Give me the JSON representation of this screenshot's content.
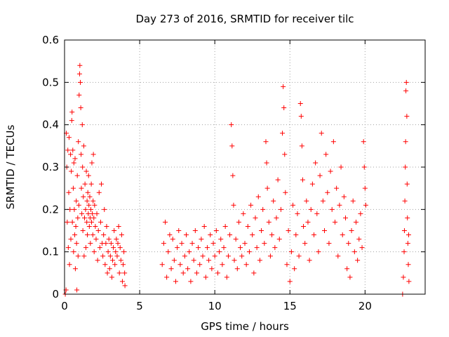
{
  "chart_data": {
    "type": "scatter",
    "title": "Day 273 of 2016, SRMTID for receiver tilc",
    "xlabel": "GPS time / hours",
    "ylabel": "SRMTID / TECUs",
    "xlim": [
      0,
      24
    ],
    "ylim": [
      0,
      0.6
    ],
    "xticks": [
      0,
      5,
      10,
      15,
      20
    ],
    "yticks": [
      0,
      0.1,
      0.2,
      0.3,
      0.4,
      0.5,
      0.6
    ],
    "grid": true,
    "marker": "+",
    "color": "#ff0000",
    "series": [
      {
        "name": "SRMTID",
        "points": [
          [
            0.05,
            0.0
          ],
          [
            0.1,
            0.01
          ],
          [
            0.12,
            0.38
          ],
          [
            0.15,
            0.3
          ],
          [
            0.18,
            0.17
          ],
          [
            0.22,
            0.34
          ],
          [
            0.25,
            0.11
          ],
          [
            0.28,
            0.24
          ],
          [
            0.3,
            0.37
          ],
          [
            0.33,
            0.07
          ],
          [
            0.36,
            0.2
          ],
          [
            0.4,
            0.33
          ],
          [
            0.42,
            0.13
          ],
          [
            0.45,
            0.29
          ],
          [
            0.48,
            0.41
          ],
          [
            0.5,
            0.43
          ],
          [
            0.52,
            0.17
          ],
          [
            0.55,
            0.34
          ],
          [
            0.58,
            0.25
          ],
          [
            0.6,
            0.1
          ],
          [
            0.62,
            0.31
          ],
          [
            0.65,
            0.2
          ],
          [
            0.68,
            0.14
          ],
          [
            0.7,
            0.32
          ],
          [
            0.72,
            0.06
          ],
          [
            0.75,
            0.16
          ],
          [
            0.78,
            0.22
          ],
          [
            0.8,
            0.12
          ],
          [
            0.82,
            0.01
          ],
          [
            0.85,
            0.28
          ],
          [
            0.88,
            0.18
          ],
          [
            0.9,
            0.09
          ],
          [
            0.92,
            0.36
          ],
          [
            0.95,
            0.21
          ],
          [
            0.97,
            0.47
          ],
          [
            1.0,
            0.52
          ],
          [
            1.02,
            0.54
          ],
          [
            1.05,
            0.5
          ],
          [
            1.08,
            0.44
          ],
          [
            1.1,
            0.33
          ],
          [
            1.12,
            0.25
          ],
          [
            1.15,
            0.19
          ],
          [
            1.18,
            0.4
          ],
          [
            1.2,
            0.3
          ],
          [
            1.22,
            0.15
          ],
          [
            1.25,
            0.23
          ],
          [
            1.28,
            0.35
          ],
          [
            1.3,
            0.09
          ],
          [
            1.33,
            0.18
          ],
          [
            1.36,
            0.26
          ],
          [
            1.4,
            0.2
          ],
          [
            1.42,
            0.11
          ],
          [
            1.45,
            0.29
          ],
          [
            1.48,
            0.17
          ],
          [
            1.5,
            0.22
          ],
          [
            1.52,
            0.14
          ],
          [
            1.55,
            0.24
          ],
          [
            1.58,
            0.19
          ],
          [
            1.6,
            0.28
          ],
          [
            1.62,
            0.21
          ],
          [
            1.65,
            0.16
          ],
          [
            1.68,
            0.23
          ],
          [
            1.7,
            0.18
          ],
          [
            1.72,
            0.12
          ],
          [
            1.75,
            0.2
          ],
          [
            1.78,
            0.26
          ],
          [
            1.8,
            0.17
          ],
          [
            1.82,
            0.31
          ],
          [
            1.85,
            0.19
          ],
          [
            1.88,
            0.14
          ],
          [
            1.9,
            0.22
          ],
          [
            1.92,
            0.33
          ],
          [
            1.95,
            0.18
          ],
          [
            1.97,
            0.1
          ],
          [
            2.0,
            0.21
          ],
          [
            2.05,
            0.16
          ],
          [
            2.1,
            0.13
          ],
          [
            2.15,
            0.19
          ],
          [
            2.2,
            0.08
          ],
          [
            2.25,
            0.15
          ],
          [
            2.3,
            0.24
          ],
          [
            2.35,
            0.11
          ],
          [
            2.4,
            0.17
          ],
          [
            2.45,
            0.26
          ],
          [
            2.5,
            0.12
          ],
          [
            2.55,
            0.09
          ],
          [
            2.6,
            0.14
          ],
          [
            2.65,
            0.2
          ],
          [
            2.7,
            0.07
          ],
          [
            2.75,
            0.12
          ],
          [
            2.8,
            0.16
          ],
          [
            2.85,
            0.05
          ],
          [
            2.9,
            0.1
          ],
          [
            2.95,
            0.13
          ],
          [
            3.0,
            0.06
          ],
          [
            3.05,
            0.09
          ],
          [
            3.1,
            0.12
          ],
          [
            3.15,
            0.04
          ],
          [
            3.2,
            0.08
          ],
          [
            3.25,
            0.11
          ],
          [
            3.3,
            0.15
          ],
          [
            3.35,
            0.07
          ],
          [
            3.4,
            0.1
          ],
          [
            3.45,
            0.13
          ],
          [
            3.5,
            0.09
          ],
          [
            3.55,
            0.12
          ],
          [
            3.6,
            0.16
          ],
          [
            3.65,
            0.05
          ],
          [
            3.7,
            0.11
          ],
          [
            3.75,
            0.08
          ],
          [
            3.8,
            0.14
          ],
          [
            3.85,
            0.03
          ],
          [
            3.9,
            0.07
          ],
          [
            3.95,
            0.1
          ],
          [
            4.0,
            0.05
          ],
          [
            4.02,
            0.02
          ],
          [
            6.5,
            0.07
          ],
          [
            6.6,
            0.12
          ],
          [
            6.7,
            0.17
          ],
          [
            6.8,
            0.04
          ],
          [
            6.9,
            0.1
          ],
          [
            7.0,
            0.14
          ],
          [
            7.1,
            0.06
          ],
          [
            7.2,
            0.13
          ],
          [
            7.3,
            0.08
          ],
          [
            7.4,
            0.03
          ],
          [
            7.5,
            0.11
          ],
          [
            7.6,
            0.15
          ],
          [
            7.7,
            0.07
          ],
          [
            7.8,
            0.12
          ],
          [
            7.9,
            0.05
          ],
          [
            8.0,
            0.09
          ],
          [
            8.1,
            0.14
          ],
          [
            8.2,
            0.06
          ],
          [
            8.3,
            0.1
          ],
          [
            8.4,
            0.03
          ],
          [
            8.5,
            0.12
          ],
          [
            8.6,
            0.08
          ],
          [
            8.7,
            0.15
          ],
          [
            8.8,
            0.05
          ],
          [
            8.9,
            0.11
          ],
          [
            9.0,
            0.07
          ],
          [
            9.1,
            0.13
          ],
          [
            9.2,
            0.09
          ],
          [
            9.3,
            0.16
          ],
          [
            9.4,
            0.04
          ],
          [
            9.5,
            0.11
          ],
          [
            9.6,
            0.08
          ],
          [
            9.7,
            0.14
          ],
          [
            9.8,
            0.06
          ],
          [
            9.9,
            0.12
          ],
          [
            10.0,
            0.09
          ],
          [
            10.1,
            0.15
          ],
          [
            10.2,
            0.05
          ],
          [
            10.3,
            0.1
          ],
          [
            10.4,
            0.13
          ],
          [
            10.5,
            0.07
          ],
          [
            10.6,
            0.11
          ],
          [
            10.7,
            0.16
          ],
          [
            10.8,
            0.04
          ],
          [
            10.9,
            0.09
          ],
          [
            11.0,
            0.14
          ],
          [
            11.1,
            0.4
          ],
          [
            11.15,
            0.35
          ],
          [
            11.2,
            0.28
          ],
          [
            11.25,
            0.21
          ],
          [
            11.3,
            0.08
          ],
          [
            11.4,
            0.13
          ],
          [
            11.5,
            0.06
          ],
          [
            11.6,
            0.17
          ],
          [
            11.7,
            0.11
          ],
          [
            11.8,
            0.09
          ],
          [
            11.9,
            0.19
          ],
          [
            12.0,
            0.12
          ],
          [
            12.1,
            0.07
          ],
          [
            12.2,
            0.16
          ],
          [
            12.3,
            0.1
          ],
          [
            12.4,
            0.21
          ],
          [
            12.5,
            0.14
          ],
          [
            12.6,
            0.05
          ],
          [
            12.7,
            0.18
          ],
          [
            12.8,
            0.11
          ],
          [
            12.9,
            0.23
          ],
          [
            13.0,
            0.08
          ],
          [
            13.1,
            0.15
          ],
          [
            13.2,
            0.2
          ],
          [
            13.3,
            0.12
          ],
          [
            13.4,
            0.36
          ],
          [
            13.45,
            0.31
          ],
          [
            13.5,
            0.25
          ],
          [
            13.6,
            0.17
          ],
          [
            13.7,
            0.09
          ],
          [
            13.8,
            0.14
          ],
          [
            13.9,
            0.22
          ],
          [
            14.0,
            0.11
          ],
          [
            14.1,
            0.18
          ],
          [
            14.2,
            0.27
          ],
          [
            14.3,
            0.13
          ],
          [
            14.4,
            0.2
          ],
          [
            14.5,
            0.38
          ],
          [
            14.55,
            0.49
          ],
          [
            14.6,
            0.44
          ],
          [
            14.65,
            0.33
          ],
          [
            14.7,
            0.24
          ],
          [
            14.8,
            0.07
          ],
          [
            14.9,
            0.15
          ],
          [
            15.0,
            0.03
          ],
          [
            15.1,
            0.1
          ],
          [
            15.2,
            0.21
          ],
          [
            15.3,
            0.06
          ],
          [
            15.4,
            0.14
          ],
          [
            15.5,
            0.19
          ],
          [
            15.6,
            0.09
          ],
          [
            15.7,
            0.45
          ],
          [
            15.75,
            0.42
          ],
          [
            15.8,
            0.35
          ],
          [
            15.85,
            0.27
          ],
          [
            15.9,
            0.16
          ],
          [
            16.0,
            0.12
          ],
          [
            16.1,
            0.22
          ],
          [
            16.2,
            0.17
          ],
          [
            16.3,
            0.08
          ],
          [
            16.4,
            0.2
          ],
          [
            16.5,
            0.26
          ],
          [
            16.6,
            0.14
          ],
          [
            16.7,
            0.31
          ],
          [
            16.8,
            0.19
          ],
          [
            16.9,
            0.1
          ],
          [
            17.0,
            0.28
          ],
          [
            17.1,
            0.38
          ],
          [
            17.2,
            0.22
          ],
          [
            17.3,
            0.15
          ],
          [
            17.4,
            0.33
          ],
          [
            17.5,
            0.24
          ],
          [
            17.6,
            0.12
          ],
          [
            17.7,
            0.29
          ],
          [
            17.8,
            0.2
          ],
          [
            17.9,
            0.36
          ],
          [
            18.0,
            0.17
          ],
          [
            18.1,
            0.25
          ],
          [
            18.2,
            0.09
          ],
          [
            18.3,
            0.21
          ],
          [
            18.4,
            0.3
          ],
          [
            18.5,
            0.14
          ],
          [
            18.6,
            0.23
          ],
          [
            18.7,
            0.18
          ],
          [
            18.8,
            0.06
          ],
          [
            18.9,
            0.12
          ],
          [
            19.0,
            0.04
          ],
          [
            19.1,
            0.15
          ],
          [
            19.2,
            0.22
          ],
          [
            19.3,
            0.1
          ],
          [
            19.4,
            0.17
          ],
          [
            19.5,
            0.08
          ],
          [
            19.6,
            0.13
          ],
          [
            19.7,
            0.19
          ],
          [
            19.8,
            0.11
          ],
          [
            19.9,
            0.36
          ],
          [
            19.95,
            0.3
          ],
          [
            20.0,
            0.25
          ],
          [
            20.05,
            0.21
          ],
          [
            22.5,
            0.0
          ],
          [
            22.55,
            0.04
          ],
          [
            22.6,
            0.1
          ],
          [
            22.62,
            0.15
          ],
          [
            22.65,
            0.22
          ],
          [
            22.68,
            0.3
          ],
          [
            22.7,
            0.36
          ],
          [
            22.72,
            0.48
          ],
          [
            22.75,
            0.5
          ],
          [
            22.78,
            0.42
          ],
          [
            22.8,
            0.26
          ],
          [
            22.82,
            0.18
          ],
          [
            22.85,
            0.12
          ],
          [
            22.88,
            0.07
          ],
          [
            22.9,
            0.14
          ],
          [
            22.92,
            0.03
          ]
        ]
      }
    ]
  }
}
